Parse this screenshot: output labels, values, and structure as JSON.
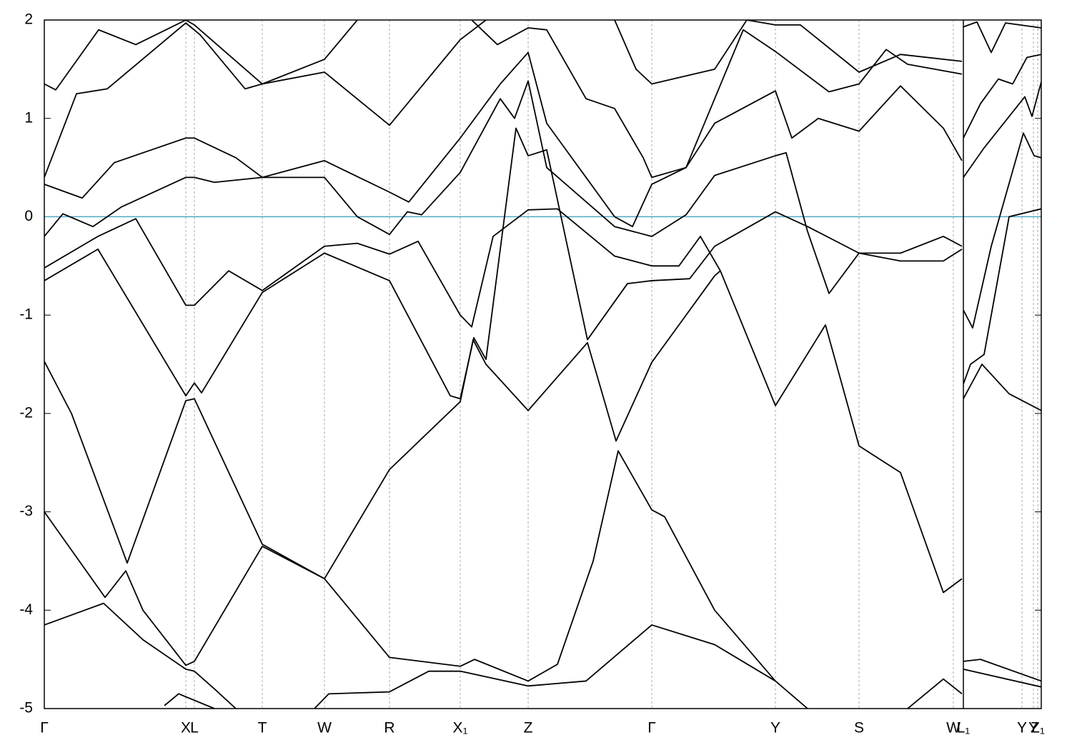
{
  "chart_data": {
    "type": "line",
    "color": "#000000",
    "xlim": [
      0,
      13.95
    ],
    "ylim": [
      -5,
      2
    ],
    "yticks": [
      -5,
      -4,
      -3,
      -2,
      -1,
      0,
      1,
      2
    ],
    "xticks": [
      {
        "value": 0,
        "label": "Γ"
      },
      {
        "value": 1.98,
        "label": "X"
      },
      {
        "value": 2.1,
        "label": "L"
      },
      {
        "value": 3.05,
        "label": "T"
      },
      {
        "value": 3.92,
        "label": "W"
      },
      {
        "value": 4.83,
        "label": "R"
      },
      {
        "value": 5.82,
        "label": "X₁"
      },
      {
        "value": 6.77,
        "label": "Z"
      },
      {
        "value": 8.5,
        "label": "Γ"
      },
      {
        "value": 10.23,
        "label": "Y"
      },
      {
        "value": 11.4,
        "label": "S"
      },
      {
        "value": 12.72,
        "label": "W"
      },
      {
        "value": 12.86,
        "label": "L₁"
      },
      {
        "value": 13.68,
        "label": "Y"
      },
      {
        "value": 13.84,
        "label": "Y"
      },
      {
        "value": 13.9,
        "label": "Z₁"
      }
    ],
    "grid": "x",
    "reference_line": {
      "value": 0,
      "color": "#4fa9c4"
    },
    "series": [
      {
        "x": [
          0,
          0.83,
          1.38,
          1.98,
          2.1,
          2.38,
          2.68
        ],
        "values": [
          -4.15,
          -3.93,
          -4.3,
          -4.6,
          -4.62,
          -4.8,
          -5.0
        ]
      },
      {
        "x": [
          0,
          0.85,
          1.14,
          1.38,
          1.98,
          2.1,
          3.05,
          3.92,
          4.83,
          5.82,
          6.02,
          6.77,
          7.18,
          7.68,
          8.03,
          8.5,
          8.68,
          9.38,
          10.23
        ],
        "values": [
          -3.0,
          -3.87,
          -3.6,
          -4.0,
          -4.56,
          -4.52,
          -3.35,
          -3.68,
          -4.48,
          -4.57,
          -4.5,
          -4.72,
          -4.55,
          -3.5,
          -2.38,
          -2.98,
          -3.05,
          -4.0,
          -4.72
        ]
      },
      {
        "x": [
          0,
          0.38,
          1.16,
          1.98,
          2.1,
          3.05,
          3.92,
          4.83,
          5.82,
          6.0,
          6.18,
          6.77,
          7.6,
          8.0,
          8.5,
          9.38,
          9.46,
          10.23,
          10.93,
          11.4,
          11.98,
          12.58,
          12.84
        ],
        "values": [
          -1.47,
          -2.0,
          -3.52,
          -1.87,
          -1.85,
          -3.33,
          -3.68,
          -2.57,
          -1.88,
          -1.25,
          -1.5,
          -1.97,
          -1.28,
          -2.28,
          -1.48,
          -0.6,
          -0.55,
          -1.92,
          -1.1,
          -2.33,
          -2.6,
          -3.82,
          -3.68
        ]
      },
      {
        "x": [
          0,
          0.75,
          1.98,
          2.1,
          2.2,
          3.05,
          3.92,
          4.83,
          5.68,
          5.82,
          6.01,
          6.18,
          6.6,
          6.77,
          7.03,
          7.6,
          8.16,
          8.5,
          9.03,
          9.38,
          10.23,
          10.68,
          11.4,
          11.98,
          12.58,
          12.84
        ],
        "values": [
          -0.65,
          -0.33,
          -1.82,
          -1.69,
          -1.79,
          -0.77,
          -0.37,
          -0.65,
          -1.82,
          -1.85,
          -1.23,
          -1.45,
          0.9,
          0.62,
          0.68,
          -1.25,
          -0.68,
          -0.65,
          -0.63,
          -0.3,
          0.05,
          -0.1,
          -0.37,
          -0.45,
          -0.45,
          -0.33
        ]
      },
      {
        "x": [
          0,
          0.75,
          1.28,
          1.98,
          2.1,
          2.58,
          3.05,
          3.92,
          4.38,
          4.83,
          5.23,
          5.82,
          5.98,
          6.28,
          6.77,
          7.18,
          7.98,
          8.5,
          8.88,
          9.18,
          9.46
        ],
        "values": [
          -0.52,
          -0.2,
          -0.02,
          -0.9,
          -0.9,
          -0.55,
          -0.75,
          -0.3,
          -0.27,
          -0.38,
          -0.25,
          -1.0,
          -1.12,
          -0.2,
          0.07,
          0.08,
          -0.4,
          -0.5,
          -0.5,
          -0.2,
          -0.55
        ]
      },
      {
        "x": [
          0,
          0.26,
          0.68,
          1.08,
          1.98,
          2.1,
          2.38,
          3.05,
          3.92,
          4.38,
          4.83,
          5.08,
          5.28,
          5.82,
          6.38,
          6.58,
          6.77,
          7.03,
          7.98,
          8.5,
          8.98,
          9.38,
          10.23,
          10.38,
          10.68,
          10.98,
          11.4,
          11.98,
          12.58,
          12.84
        ],
        "values": [
          -0.2,
          0.03,
          -0.1,
          0.1,
          0.4,
          0.4,
          0.35,
          0.4,
          0.4,
          0.0,
          -0.18,
          0.05,
          0.02,
          0.45,
          1.2,
          1.0,
          1.38,
          0.5,
          -0.1,
          -0.2,
          0.02,
          0.42,
          0.62,
          0.65,
          -0.15,
          -0.78,
          -0.37,
          -0.37,
          -0.2,
          -0.3
        ]
      },
      {
        "x": [
          0,
          0.53,
          0.98,
          1.98,
          2.1,
          2.68,
          3.05,
          3.92,
          4.83,
          5.1,
          5.82,
          6.38,
          6.77,
          7.03,
          7.98,
          8.23,
          8.5,
          8.98,
          9.38,
          10.23,
          10.46,
          10.83,
          11.4,
          11.98,
          12.58,
          12.84
        ],
        "values": [
          0.33,
          0.19,
          0.55,
          0.8,
          0.8,
          0.6,
          0.4,
          0.57,
          0.25,
          0.15,
          0.8,
          1.35,
          1.67,
          0.95,
          0.0,
          -0.1,
          0.33,
          0.5,
          0.95,
          1.28,
          0.8,
          1.0,
          0.87,
          1.33,
          0.9,
          0.57
        ]
      },
      {
        "x": [
          0,
          0.45,
          0.88,
          1.98,
          2.18,
          2.81,
          3.05,
          3.92,
          4.83,
          5.82,
          6.18
        ],
        "values": [
          0.4,
          1.25,
          1.3,
          1.97,
          1.85,
          1.3,
          1.35,
          1.47,
          0.93,
          1.8,
          2.0
        ]
      },
      {
        "x": [
          0,
          0.16,
          0.76,
          1.28,
          1.98,
          2.1,
          3.05,
          3.92,
          4.38
        ],
        "values": [
          1.35,
          1.29,
          1.9,
          1.75,
          2.0,
          1.95,
          1.35,
          1.6,
          2.0
        ]
      },
      {
        "x": [
          5.98,
          6.34,
          6.77,
          7.03,
          7.58,
          7.98,
          8.38,
          8.5,
          8.98,
          9.78,
          10.23,
          10.98,
          11.4,
          11.78,
          12.08,
          12.84
        ],
        "values": [
          2.0,
          1.75,
          1.92,
          1.9,
          1.2,
          1.1,
          0.6,
          0.4,
          0.5,
          1.9,
          1.68,
          1.27,
          1.35,
          1.7,
          1.55,
          1.45
        ]
      },
      {
        "x": [
          7.98,
          8.28,
          8.5,
          9.38,
          9.83,
          10.23,
          10.58,
          11.4,
          11.98,
          12.84
        ],
        "values": [
          2.0,
          1.5,
          1.35,
          1.5,
          2.0,
          1.95,
          1.95,
          1.47,
          1.65,
          1.58
        ]
      },
      {
        "x": [
          3.78,
          3.98,
          4.83,
          5.38,
          5.82,
          6.77,
          7.58,
          8.5,
          9.38,
          10.23,
          10.68
        ],
        "values": [
          -5.0,
          -4.85,
          -4.83,
          -4.62,
          -4.62,
          -4.77,
          -4.72,
          -4.15,
          -4.35,
          -4.72,
          -5.0
        ]
      },
      {
        "x": [
          1.68,
          1.88,
          2.38
        ],
        "values": [
          -4.97,
          -4.85,
          -5.0
        ]
      },
      {
        "x": [
          12.08,
          12.58,
          12.84
        ],
        "values": [
          -5.0,
          -4.7,
          -4.85
        ]
      },
      {
        "x": [
          12.86,
          13.05,
          13.25,
          13.45,
          13.95
        ],
        "values": [
          1.93,
          1.98,
          1.67,
          1.97,
          1.92
        ]
      },
      {
        "x": [
          12.86,
          13.1,
          13.35,
          13.55,
          13.75,
          13.95
        ],
        "values": [
          0.8,
          1.15,
          1.4,
          1.35,
          1.62,
          1.65
        ]
      },
      {
        "x": [
          12.86,
          13.15,
          13.72,
          13.82,
          13.95
        ],
        "values": [
          0.4,
          0.7,
          1.22,
          1.02,
          1.37
        ]
      },
      {
        "x": [
          12.86,
          12.99,
          13.25,
          13.7,
          13.85,
          13.95
        ],
        "values": [
          -0.95,
          -1.13,
          -0.3,
          0.85,
          0.62,
          0.6
        ]
      },
      {
        "x": [
          12.86,
          12.96,
          13.15,
          13.5,
          13.95
        ],
        "values": [
          -1.7,
          -1.5,
          -1.4,
          0.0,
          0.08
        ]
      },
      {
        "x": [
          12.86,
          13.12,
          13.5,
          13.95
        ],
        "values": [
          -1.85,
          -1.5,
          -1.8,
          -1.97
        ]
      },
      {
        "x": [
          12.86,
          13.1,
          13.95
        ],
        "values": [
          -4.52,
          -4.5,
          -4.72
        ]
      },
      {
        "x": [
          12.86,
          13.95
        ],
        "values": [
          -4.6,
          -4.78
        ]
      }
    ]
  }
}
